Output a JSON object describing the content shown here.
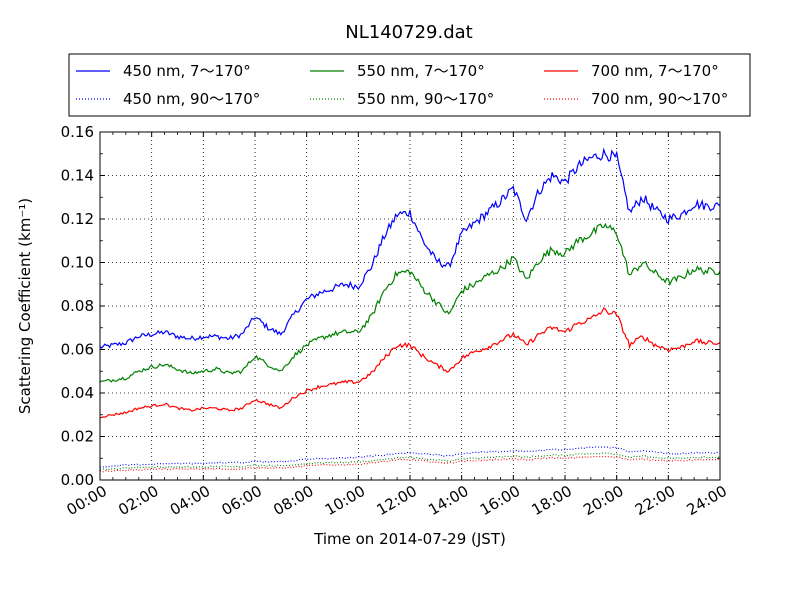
{
  "chart_data": {
    "type": "line",
    "title": "NL140729.dat",
    "xlabel": "Time on 2014-07-29 (JST)",
    "ylabel": "Scattering Coefficient (km⁻¹)",
    "x_ticks": [
      "00:00",
      "02:00",
      "04:00",
      "06:00",
      "08:00",
      "10:00",
      "12:00",
      "14:00",
      "16:00",
      "18:00",
      "20:00",
      "22:00",
      "24:00"
    ],
    "y_ticks": [
      "0.00",
      "0.02",
      "0.04",
      "0.06",
      "0.08",
      "0.10",
      "0.12",
      "0.14",
      "0.16"
    ],
    "xlim_hours": [
      0,
      24
    ],
    "ylim": [
      0,
      0.16
    ],
    "grid": true,
    "legend_position": "top, above plot",
    "x_hours": [
      0,
      0.5,
      1,
      1.5,
      2,
      2.5,
      3,
      3.5,
      4,
      4.5,
      5,
      5.5,
      6,
      6.5,
      7,
      7.5,
      8,
      8.5,
      9,
      9.5,
      10,
      10.5,
      11,
      11.5,
      12,
      12.5,
      13,
      13.5,
      14,
      14.5,
      15,
      15.5,
      16,
      16.5,
      17,
      17.5,
      18,
      18.5,
      19,
      19.5,
      20,
      20.5,
      21,
      21.5,
      22,
      22.5,
      23,
      23.5,
      24
    ],
    "series": [
      {
        "name": "450 nm, 7～170°",
        "color": "#0000ff",
        "style": "solid",
        "values": [
          0.061,
          0.062,
          0.063,
          0.066,
          0.067,
          0.068,
          0.066,
          0.065,
          0.066,
          0.066,
          0.065,
          0.067,
          0.075,
          0.07,
          0.067,
          0.076,
          0.083,
          0.086,
          0.088,
          0.09,
          0.089,
          0.098,
          0.112,
          0.122,
          0.123,
          0.11,
          0.101,
          0.098,
          0.113,
          0.118,
          0.123,
          0.128,
          0.134,
          0.12,
          0.133,
          0.14,
          0.137,
          0.144,
          0.148,
          0.15,
          0.148,
          0.123,
          0.13,
          0.124,
          0.12,
          0.122,
          0.127,
          0.126,
          0.126
        ]
      },
      {
        "name": "450 nm, 90～170°",
        "color": "#0000ff",
        "style": "dotted",
        "values": [
          0.006,
          0.0065,
          0.007,
          0.007,
          0.0072,
          0.0075,
          0.0075,
          0.0075,
          0.0078,
          0.008,
          0.008,
          0.008,
          0.0085,
          0.0085,
          0.0085,
          0.009,
          0.0095,
          0.0098,
          0.01,
          0.0102,
          0.0105,
          0.011,
          0.0115,
          0.0122,
          0.0125,
          0.012,
          0.0115,
          0.011,
          0.012,
          0.0125,
          0.013,
          0.013,
          0.0135,
          0.013,
          0.0135,
          0.014,
          0.014,
          0.0145,
          0.015,
          0.015,
          0.015,
          0.013,
          0.0135,
          0.013,
          0.012,
          0.0122,
          0.0125,
          0.0125,
          0.0125
        ]
      },
      {
        "name": "550 nm, 7～170°",
        "color": "#008000",
        "style": "solid",
        "values": [
          0.045,
          0.046,
          0.047,
          0.05,
          0.052,
          0.053,
          0.051,
          0.049,
          0.05,
          0.051,
          0.049,
          0.05,
          0.057,
          0.053,
          0.05,
          0.057,
          0.062,
          0.065,
          0.067,
          0.068,
          0.068,
          0.075,
          0.087,
          0.095,
          0.096,
          0.088,
          0.082,
          0.076,
          0.087,
          0.09,
          0.094,
          0.097,
          0.102,
          0.092,
          0.101,
          0.106,
          0.104,
          0.11,
          0.113,
          0.117,
          0.114,
          0.094,
          0.1,
          0.095,
          0.091,
          0.093,
          0.097,
          0.096,
          0.096
        ]
      },
      {
        "name": "550 nm, 90～170°",
        "color": "#008000",
        "style": "dotted",
        "values": [
          0.005,
          0.005,
          0.0055,
          0.0058,
          0.006,
          0.006,
          0.006,
          0.006,
          0.006,
          0.0062,
          0.0062,
          0.0062,
          0.0068,
          0.0066,
          0.0065,
          0.007,
          0.0075,
          0.0078,
          0.008,
          0.008,
          0.0082,
          0.0088,
          0.0095,
          0.0102,
          0.0104,
          0.0098,
          0.0092,
          0.0088,
          0.0096,
          0.01,
          0.0104,
          0.0106,
          0.011,
          0.0104,
          0.011,
          0.0115,
          0.0112,
          0.0118,
          0.012,
          0.0122,
          0.012,
          0.0104,
          0.011,
          0.0104,
          0.01,
          0.0101,
          0.0104,
          0.0104,
          0.0104
        ]
      },
      {
        "name": "700 nm, 7～170°",
        "color": "#ff0000",
        "style": "solid",
        "values": [
          0.029,
          0.03,
          0.031,
          0.033,
          0.034,
          0.035,
          0.033,
          0.032,
          0.033,
          0.033,
          0.032,
          0.033,
          0.037,
          0.035,
          0.033,
          0.038,
          0.041,
          0.043,
          0.044,
          0.045,
          0.045,
          0.049,
          0.056,
          0.062,
          0.062,
          0.057,
          0.053,
          0.05,
          0.056,
          0.059,
          0.061,
          0.064,
          0.067,
          0.062,
          0.067,
          0.07,
          0.068,
          0.072,
          0.074,
          0.078,
          0.076,
          0.062,
          0.066,
          0.062,
          0.06,
          0.061,
          0.064,
          0.063,
          0.063
        ]
      },
      {
        "name": "700 nm, 90～170°",
        "color": "#ff0000",
        "style": "dotted",
        "values": [
          0.004,
          0.0042,
          0.0045,
          0.0048,
          0.005,
          0.005,
          0.005,
          0.005,
          0.005,
          0.0052,
          0.005,
          0.0052,
          0.0058,
          0.0055,
          0.0055,
          0.006,
          0.0065,
          0.0068,
          0.007,
          0.007,
          0.0072,
          0.0078,
          0.0085,
          0.0092,
          0.0094,
          0.0088,
          0.0082,
          0.0078,
          0.0086,
          0.009,
          0.0092,
          0.0095,
          0.0098,
          0.0092,
          0.0098,
          0.0102,
          0.0098,
          0.0104,
          0.0106,
          0.0108,
          0.0106,
          0.0092,
          0.0096,
          0.0092,
          0.0088,
          0.0089,
          0.0092,
          0.0092,
          0.0092
        ]
      }
    ]
  }
}
